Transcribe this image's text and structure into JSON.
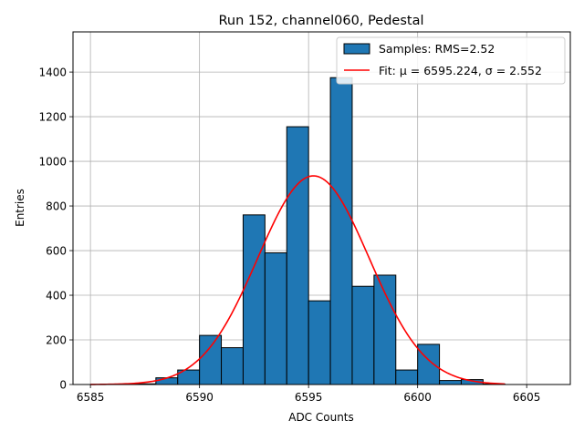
{
  "chart_data": {
    "type": "bar",
    "title": "Run 152, channel060, Pedestal",
    "xlabel": "ADC Counts",
    "ylabel": "Entries",
    "xlim": [
      6584.2,
      6607.0
    ],
    "ylim": [
      0,
      1580
    ],
    "xticks": [
      6585,
      6590,
      6595,
      6600,
      6605
    ],
    "yticks": [
      0,
      200,
      400,
      600,
      800,
      1000,
      1200,
      1400
    ],
    "grid": true,
    "legend_position": "top-right",
    "bin_width": 1,
    "bins": [
      {
        "x0": 6587,
        "value": 3
      },
      {
        "x0": 6588,
        "value": 30
      },
      {
        "x0": 6589,
        "value": 65
      },
      {
        "x0": 6590,
        "value": 220
      },
      {
        "x0": 6591,
        "value": 165
      },
      {
        "x0": 6592,
        "value": 760
      },
      {
        "x0": 6593,
        "value": 590
      },
      {
        "x0": 6594,
        "value": 1155
      },
      {
        "x0": 6595,
        "value": 375
      },
      {
        "x0": 6596,
        "value": 1375
      },
      {
        "x0": 6597,
        "value": 440
      },
      {
        "x0": 6598,
        "value": 490
      },
      {
        "x0": 6599,
        "value": 65
      },
      {
        "x0": 6600,
        "value": 180
      },
      {
        "x0": 6601,
        "value": 18
      },
      {
        "x0": 6602,
        "value": 22
      },
      {
        "x0": 6603,
        "value": 2
      }
    ],
    "series": [
      {
        "name": "Samples: RMS=2.52",
        "type": "histogram",
        "color": "#1f77b4",
        "edgecolor": "#000000"
      },
      {
        "name": "Fit: μ = 6595.224, σ = 2.552",
        "type": "line",
        "color": "#ff0000",
        "mu": 6595.224,
        "sigma": 2.552,
        "amplitude": 935,
        "x_range": [
          6585,
          6604
        ]
      }
    ]
  }
}
